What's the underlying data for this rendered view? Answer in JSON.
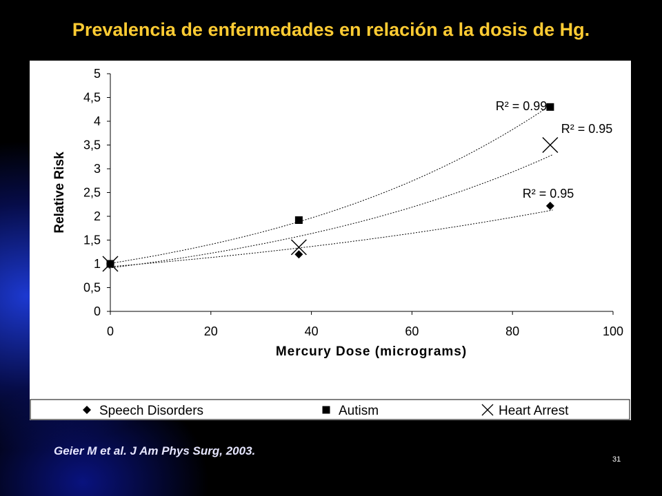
{
  "slide": {
    "title": "Prevalencia de enfermedades en relación a la dosis de Hg.",
    "citation": "Geier M et al. J Am Phys Surg, 2003.",
    "page_number": "31",
    "title_color": "#ffcc33"
  },
  "chart_data": {
    "type": "scatter",
    "title": "",
    "xlabel": "Mercury Dose (micrograms)",
    "ylabel": "Relative Risk",
    "xlim": [
      0,
      100
    ],
    "ylim": [
      0,
      5
    ],
    "xticks": [
      "0",
      "20",
      "40",
      "60",
      "80",
      "100"
    ],
    "yticks": [
      "0",
      "0,5",
      "1",
      "1,5",
      "2",
      "2,5",
      "3",
      "3,5",
      "4",
      "4,5",
      "5"
    ],
    "grid": false,
    "legend_position": "bottom",
    "series": [
      {
        "name": "Speech Disorders",
        "marker": "diamond",
        "x": [
          0,
          37.5,
          87.5
        ],
        "y": [
          1.0,
          1.2,
          2.22
        ],
        "trendline": {
          "r2_label": "R² = 0.95",
          "r2": "0.95"
        }
      },
      {
        "name": "Autism",
        "marker": "square",
        "x": [
          0,
          37.5,
          87.5
        ],
        "y": [
          1.0,
          1.92,
          4.3
        ],
        "trendline": {
          "r2_label": "R² = 0.99",
          "r2": "0.99"
        }
      },
      {
        "name": "Heart Arrest",
        "marker": "x",
        "x": [
          0,
          37.5,
          87.5
        ],
        "y": [
          1.0,
          1.35,
          3.5
        ],
        "trendline": {
          "r2_label": "R² = 0.95",
          "r2": "0.95"
        }
      }
    ]
  }
}
